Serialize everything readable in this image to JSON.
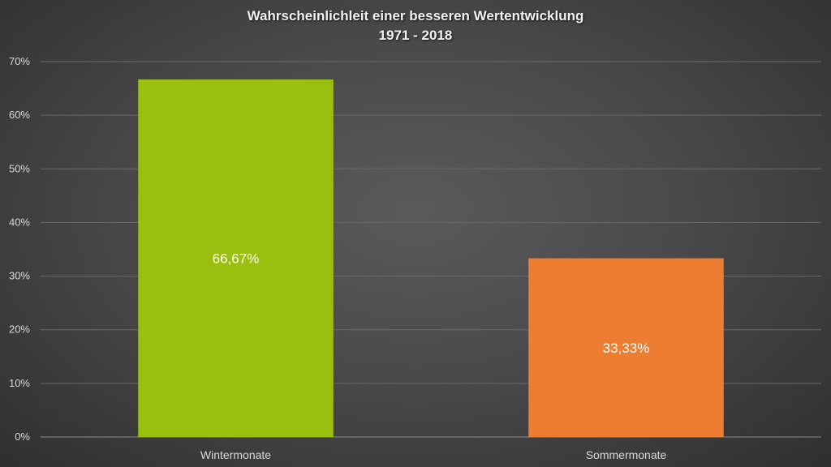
{
  "chart_data": {
    "type": "bar",
    "title": "Wahrscheinlichleit einer besseren Wertentwicklung",
    "subtitle": "1971 - 2018",
    "categories": [
      "Wintermonate",
      "Sommermonate"
    ],
    "values": [
      66.67,
      33.33
    ],
    "data_labels": [
      "66,67%",
      "33,33%"
    ],
    "bar_colors": [
      "#9bbf0f",
      "#ed7d31"
    ],
    "ylim": [
      0,
      70
    ],
    "yticks": [
      0,
      10,
      20,
      30,
      40,
      50,
      60,
      70
    ],
    "ytick_labels": [
      "0%",
      "10%",
      "20%",
      "30%",
      "40%",
      "50%",
      "60%",
      "70%"
    ],
    "grid": true,
    "legend": "none"
  }
}
